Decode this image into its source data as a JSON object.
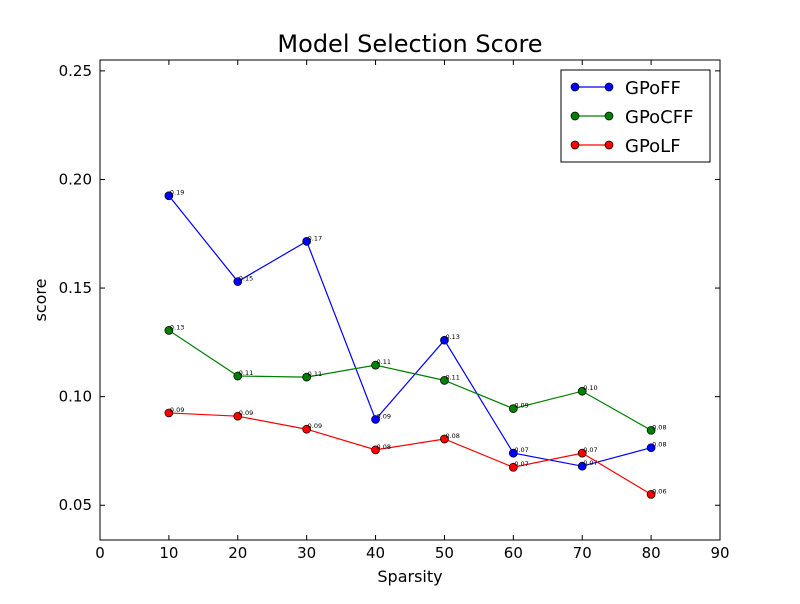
{
  "chart_data": {
    "type": "line",
    "title": "Model Selection Score",
    "xlabel": "Sparsity",
    "ylabel": "score",
    "xlim": [
      0,
      90
    ],
    "ylim": [
      0.034,
      0.255
    ],
    "x_ticks": [
      0,
      10,
      20,
      30,
      40,
      50,
      60,
      70,
      80,
      90
    ],
    "x_tick_labels": [
      "0",
      "10",
      "20",
      "30",
      "40",
      "50",
      "60",
      "70",
      "80",
      "90"
    ],
    "y_ticks": [
      0.05,
      0.1,
      0.15,
      0.2,
      0.25
    ],
    "y_tick_labels": [
      "0.05",
      "0.10",
      "0.15",
      "0.20",
      "0.25"
    ],
    "grid": false,
    "legend_position": "top-right",
    "x": [
      10,
      20,
      30,
      40,
      50,
      60,
      70,
      80
    ],
    "series": [
      {
        "name": "GPoFF",
        "color": "#0000ff",
        "values": [
          0.1925,
          0.153,
          0.1715,
          0.0895,
          0.126,
          0.074,
          0.068,
          0.0765
        ],
        "labels": [
          "0.19",
          "0.15",
          "0.17",
          "0.09",
          "0.13",
          "0.07",
          "0.07",
          "0.08"
        ]
      },
      {
        "name": "GPoCFF",
        "color": "#008000",
        "values": [
          0.1305,
          0.1095,
          0.109,
          0.1145,
          0.1075,
          0.0945,
          0.1025,
          0.0845
        ],
        "labels": [
          "0.13",
          "0.11",
          "0.11",
          "0.11",
          "0.11",
          "0.09",
          "0.10",
          "0.08"
        ]
      },
      {
        "name": "GPoLF",
        "color": "#ff0000",
        "values": [
          0.0925,
          0.091,
          0.085,
          0.0755,
          0.0805,
          0.0675,
          0.074,
          0.055
        ],
        "labels": [
          "0.09",
          "0.09",
          "0.09",
          "0.08",
          "0.08",
          "0.07",
          "0.07",
          "0.06"
        ]
      }
    ]
  }
}
